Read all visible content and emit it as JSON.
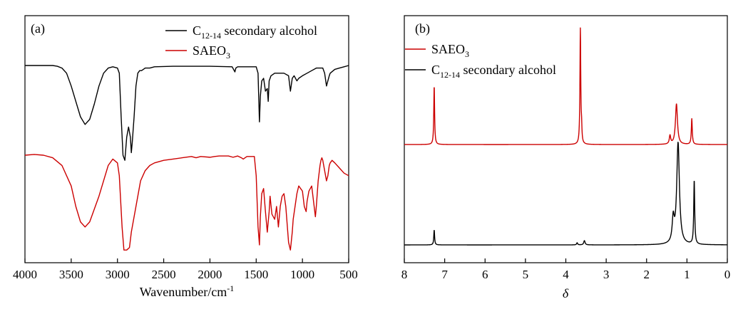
{
  "chart_data": [
    {
      "type": "line",
      "panel_label": "(a)",
      "xlabel": "Wavenumber/cm",
      "xlabel_sup": "-1",
      "x_reversed": true,
      "xlim": [
        4000,
        500
      ],
      "xticks": [
        "4000",
        "3500",
        "3000",
        "2500",
        "2000",
        "1500",
        "1000",
        "500"
      ],
      "y_ticks_shown": false,
      "legend_position": "top-right",
      "series": [
        {
          "name": "C",
          "name_sub": "12-14",
          "name_rest": " secondary alcohol",
          "color": "#000000",
          "x": [
            4000,
            3700,
            3650,
            3600,
            3550,
            3500,
            3450,
            3400,
            3350,
            3300,
            3250,
            3200,
            3150,
            3100,
            3050,
            3000,
            2980,
            2960,
            2940,
            2920,
            2900,
            2880,
            2860,
            2850,
            2840,
            2820,
            2800,
            2780,
            2760,
            2740,
            2720,
            2700,
            2650,
            2600,
            2400,
            2000,
            1760,
            1730,
            1720,
            1700,
            1500,
            1480,
            1465,
            1455,
            1440,
            1420,
            1400,
            1380,
            1370,
            1360,
            1340,
            1300,
            1200,
            1150,
            1130,
            1110,
            1090,
            1060,
            1040,
            1000,
            950,
            900,
            850,
            780,
            760,
            740,
            725,
            710,
            700,
            650,
            600,
            550,
            500
          ],
          "y": [
            0,
            0,
            -0.3,
            -1,
            -3,
            -8,
            -14,
            -20,
            -23,
            -21,
            -15,
            -8,
            -3,
            -1,
            -0.5,
            -1,
            -3,
            -20,
            -35,
            -37,
            -28,
            -24,
            -28,
            -34,
            -30,
            -20,
            -8,
            -3,
            -2,
            -2,
            -1.5,
            -1,
            -1,
            -0.5,
            -0.3,
            -0.3,
            -0.5,
            -2.5,
            -1,
            -0.5,
            -0.5,
            -3,
            -22,
            -12,
            -6,
            -5,
            -10,
            -9,
            -14,
            -6,
            -4,
            -3,
            -3,
            -4,
            -10,
            -5,
            -4,
            -6,
            -5,
            -4,
            -3,
            -2,
            -1,
            -1,
            -3,
            -8,
            -6,
            -4,
            -3,
            -1.5,
            -1,
            -0.5,
            0
          ]
        },
        {
          "name": "SAEO",
          "name_sub": "3",
          "name_rest": "",
          "color": "#cc0000",
          "x": [
            4000,
            3900,
            3800,
            3700,
            3600,
            3500,
            3450,
            3400,
            3350,
            3300,
            3200,
            3100,
            3050,
            3000,
            2980,
            2950,
            2930,
            2900,
            2870,
            2850,
            2800,
            2750,
            2700,
            2650,
            2600,
            2500,
            2400,
            2300,
            2200,
            2150,
            2100,
            2000,
            1950,
            1900,
            1800,
            1750,
            1720,
            1700,
            1660,
            1640,
            1620,
            1600,
            1520,
            1500,
            1480,
            1465,
            1455,
            1440,
            1420,
            1400,
            1380,
            1360,
            1350,
            1330,
            1300,
            1280,
            1260,
            1240,
            1220,
            1200,
            1180,
            1150,
            1130,
            1110,
            1100,
            1080,
            1060,
            1040,
            1000,
            980,
            960,
            950,
            930,
            900,
            880,
            860,
            850,
            830,
            810,
            800,
            790,
            780,
            760,
            740,
            725,
            710,
            700,
            680,
            650,
            600,
            550,
            500
          ],
          "y": [
            0,
            0.3,
            0,
            -1,
            -4,
            -12,
            -20,
            -26,
            -28,
            -26,
            -16,
            -4,
            -1.5,
            -3,
            -8,
            -28,
            -37,
            -37,
            -36,
            -30,
            -20,
            -10,
            -6,
            -4,
            -3,
            -2,
            -1.5,
            -1,
            -0.5,
            -1,
            -0.5,
            -0.8,
            -0.5,
            -0.3,
            -0.3,
            -0.8,
            -0.5,
            -0.3,
            -1,
            -1.5,
            -1,
            -0.5,
            -0.5,
            -8,
            -28,
            -35,
            -24,
            -15,
            -13,
            -22,
            -30,
            -22,
            -16,
            -23,
            -25,
            -20,
            -28,
            -20,
            -16,
            -15,
            -20,
            -34,
            -37,
            -30,
            -25,
            -20,
            -15,
            -12,
            -14,
            -20,
            -22,
            -18,
            -14,
            -12,
            -18,
            -24,
            -20,
            -10,
            -4,
            -2,
            -1,
            -2,
            -6,
            -10,
            -8,
            -4,
            -3,
            -2,
            -3,
            -5,
            -7,
            -8
          ]
        }
      ]
    },
    {
      "type": "line",
      "panel_label": "(b)",
      "xlabel": "δ",
      "x_reversed": true,
      "xlim": [
        8,
        0
      ],
      "xticks": [
        "8",
        "7",
        "6",
        "5",
        "4",
        "3",
        "2",
        "1",
        "0"
      ],
      "y_ticks_shown": false,
      "legend_position": "top-left",
      "series": [
        {
          "name": "SAEO",
          "name_sub": "3",
          "name_rest": "",
          "color": "#cc0000",
          "peaks": [
            {
              "delta": 7.26,
              "height": 55,
              "width": 0.012
            },
            {
              "delta": 3.64,
              "height": 108,
              "width": 0.012
            },
            {
              "delta": 3.61,
              "height": 12,
              "width": 0.01
            },
            {
              "delta": 1.42,
              "height": 8,
              "width": 0.02
            },
            {
              "delta": 1.26,
              "height": 38,
              "width": 0.03
            },
            {
              "delta": 0.88,
              "height": 24,
              "width": 0.014
            }
          ]
        },
        {
          "name": "C",
          "name_sub": "12-14",
          "name_rest": " secondary alcohol",
          "color": "#000000",
          "peaks": [
            {
              "delta": 7.26,
              "height": 14,
              "width": 0.012
            },
            {
              "delta": 3.72,
              "height": 2,
              "width": 0.015
            },
            {
              "delta": 3.54,
              "height": 4,
              "width": 0.02
            },
            {
              "delta": 1.34,
              "height": 22,
              "width": 0.03
            },
            {
              "delta": 1.22,
              "height": 95,
              "width": 0.04
            },
            {
              "delta": 0.82,
              "height": 60,
              "width": 0.014
            }
          ]
        }
      ]
    }
  ]
}
